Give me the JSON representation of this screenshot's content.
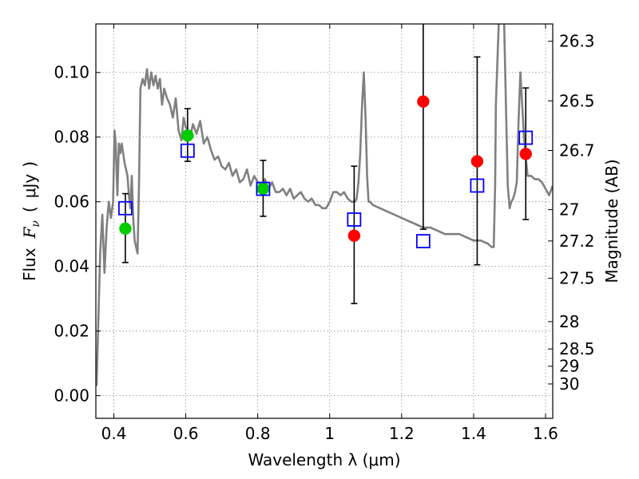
{
  "chart_data": {
    "type": "scatter",
    "xlabel": "Wavelength  λ (μm)",
    "ylabel": "Flux  Fν  ( μJy )",
    "ylabel_parts": {
      "prefix": "Flux",
      "symbol": "F",
      "subscript": "ν",
      "unit_open": "(",
      "unit": "μJy",
      "unit_close": ")"
    },
    "y2label": "Magnitude (AB)",
    "xlim": [
      0.35,
      1.62
    ],
    "ylim": [
      -0.007,
      0.115
    ],
    "grid": true,
    "x_ticks": [
      {
        "value": 0.4,
        "label": "0.4"
      },
      {
        "value": 0.6,
        "label": "0.6"
      },
      {
        "value": 0.8,
        "label": "0.8"
      },
      {
        "value": 1.0,
        "label": "1"
      },
      {
        "value": 1.2,
        "label": "1.2"
      },
      {
        "value": 1.4,
        "label": "1.4"
      },
      {
        "value": 1.6,
        "label": "1.6"
      }
    ],
    "y_ticks": [
      {
        "value": 0.0,
        "label": "0.00"
      },
      {
        "value": 0.02,
        "label": "0.02"
      },
      {
        "value": 0.04,
        "label": "0.04"
      },
      {
        "value": 0.06,
        "label": "0.06"
      },
      {
        "value": 0.08,
        "label": "0.08"
      },
      {
        "value": 0.1,
        "label": "0.10"
      }
    ],
    "y2_ticks": [
      {
        "mag": 26.3,
        "label": "26.3"
      },
      {
        "mag": 26.5,
        "label": "26.5"
      },
      {
        "mag": 26.7,
        "label": "26.7"
      },
      {
        "mag": 27.0,
        "label": "27"
      },
      {
        "mag": 27.2,
        "label": "27.2"
      },
      {
        "mag": 27.5,
        "label": "27.5"
      },
      {
        "mag": 28.0,
        "label": "28"
      },
      {
        "mag": 28.5,
        "label": "28.5"
      },
      {
        "mag": 29.0,
        "label": "29"
      },
      {
        "mag": 30.0,
        "label": "30"
      }
    ],
    "series": [
      {
        "name": "model-spectrum",
        "kind": "line",
        "color": "#808080",
        "x": [
          0.352,
          0.362,
          0.368,
          0.374,
          0.38,
          0.386,
          0.392,
          0.398,
          0.402,
          0.405,
          0.41,
          0.414,
          0.418,
          0.422,
          0.426,
          0.43,
          0.434,
          0.438,
          0.442,
          0.446,
          0.45,
          0.454,
          0.458,
          0.462,
          0.466,
          0.47,
          0.474,
          0.48,
          0.486,
          0.492,
          0.498,
          0.504,
          0.51,
          0.516,
          0.522,
          0.528,
          0.534,
          0.54,
          0.548,
          0.556,
          0.564,
          0.572,
          0.58,
          0.588,
          0.594,
          0.6,
          0.606,
          0.612,
          0.62,
          0.63,
          0.64,
          0.65,
          0.66,
          0.67,
          0.68,
          0.69,
          0.7,
          0.71,
          0.72,
          0.73,
          0.74,
          0.75,
          0.76,
          0.77,
          0.78,
          0.79,
          0.8,
          0.81,
          0.82,
          0.83,
          0.84,
          0.85,
          0.86,
          0.87,
          0.88,
          0.89,
          0.9,
          0.91,
          0.92,
          0.93,
          0.94,
          0.95,
          0.96,
          0.97,
          0.98,
          0.99,
          1.0,
          1.01,
          1.02,
          1.03,
          1.04,
          1.05,
          1.06,
          1.07,
          1.075,
          1.08,
          1.085,
          1.09,
          1.095,
          1.1,
          1.104,
          1.108,
          1.112,
          1.12,
          1.14,
          1.16,
          1.18,
          1.2,
          1.22,
          1.24,
          1.26,
          1.28,
          1.3,
          1.32,
          1.34,
          1.36,
          1.38,
          1.4,
          1.42,
          1.44,
          1.45,
          1.456,
          1.46,
          1.462,
          1.47,
          1.476,
          1.48,
          1.485,
          1.49,
          1.495,
          1.5,
          1.505,
          1.51,
          1.515,
          1.52,
          1.525,
          1.53,
          1.54,
          1.55,
          1.56,
          1.57,
          1.58,
          1.59,
          1.6,
          1.61,
          1.62
        ],
        "y": [
          0.003,
          0.044,
          0.056,
          0.038,
          0.052,
          0.06,
          0.055,
          0.06,
          0.082,
          0.078,
          0.062,
          0.078,
          0.075,
          0.078,
          0.075,
          0.072,
          0.07,
          0.068,
          0.062,
          0.058,
          0.068,
          0.055,
          0.048,
          0.046,
          0.044,
          0.065,
          0.095,
          0.098,
          0.096,
          0.101,
          0.095,
          0.1,
          0.096,
          0.099,
          0.095,
          0.098,
          0.09,
          0.095,
          0.092,
          0.09,
          0.086,
          0.092,
          0.082,
          0.079,
          0.086,
          0.083,
          0.082,
          0.08,
          0.084,
          0.081,
          0.085,
          0.078,
          0.08,
          0.076,
          0.073,
          0.074,
          0.071,
          0.07,
          0.072,
          0.068,
          0.07,
          0.066,
          0.067,
          0.07,
          0.065,
          0.068,
          0.066,
          0.065,
          0.067,
          0.064,
          0.066,
          0.063,
          0.063,
          0.064,
          0.062,
          0.064,
          0.061,
          0.062,
          0.063,
          0.061,
          0.06,
          0.061,
          0.059,
          0.059,
          0.058,
          0.058,
          0.06,
          0.063,
          0.063,
          0.062,
          0.063,
          0.061,
          0.06,
          0.06,
          0.061,
          0.066,
          0.075,
          0.09,
          0.1,
          0.085,
          0.068,
          0.06,
          0.06,
          0.059,
          0.058,
          0.057,
          0.056,
          0.055,
          0.054,
          0.053,
          0.052,
          0.052,
          0.051,
          0.05,
          0.05,
          0.05,
          0.049,
          0.048,
          0.048,
          0.047,
          0.046,
          0.046,
          0.065,
          0.09,
          0.115,
          0.12,
          0.118,
          0.115,
          0.09,
          0.065,
          0.058,
          0.06,
          0.061,
          0.063,
          0.066,
          0.085,
          0.1,
          0.08,
          0.068,
          0.068,
          0.067,
          0.067,
          0.066,
          0.064,
          0.062,
          0.065
        ]
      },
      {
        "name": "observed-red",
        "kind": "points",
        "color": "#ff0000",
        "x": [
          1.068,
          1.26,
          1.41,
          1.545
        ],
        "y": [
          0.0495,
          0.091,
          0.0725,
          0.0748
        ]
      },
      {
        "name": "observed-green",
        "kind": "points",
        "color": "#00cc00",
        "x": [
          0.432,
          0.605,
          0.815
        ],
        "y": [
          0.0517,
          0.0805,
          0.064
        ]
      },
      {
        "name": "synthetic-blue",
        "kind": "squares",
        "color": "#0000ff",
        "x": [
          0.432,
          0.605,
          0.815,
          1.068,
          1.26,
          1.41,
          1.545
        ],
        "y": [
          0.058,
          0.0758,
          0.064,
          0.0545,
          0.0478,
          0.065,
          0.0798
        ]
      },
      {
        "name": "error-bars",
        "kind": "errorbars",
        "color": "#000000",
        "x": [
          0.432,
          0.605,
          0.815,
          1.068,
          1.26,
          1.41,
          1.545
        ],
        "low": [
          0.0412,
          0.0725,
          0.0555,
          0.0285,
          0.0515,
          0.0405,
          0.0545
        ],
        "high": [
          0.0625,
          0.0888,
          0.0728,
          0.071,
          0.12,
          0.1048,
          0.0952
        ]
      }
    ]
  }
}
